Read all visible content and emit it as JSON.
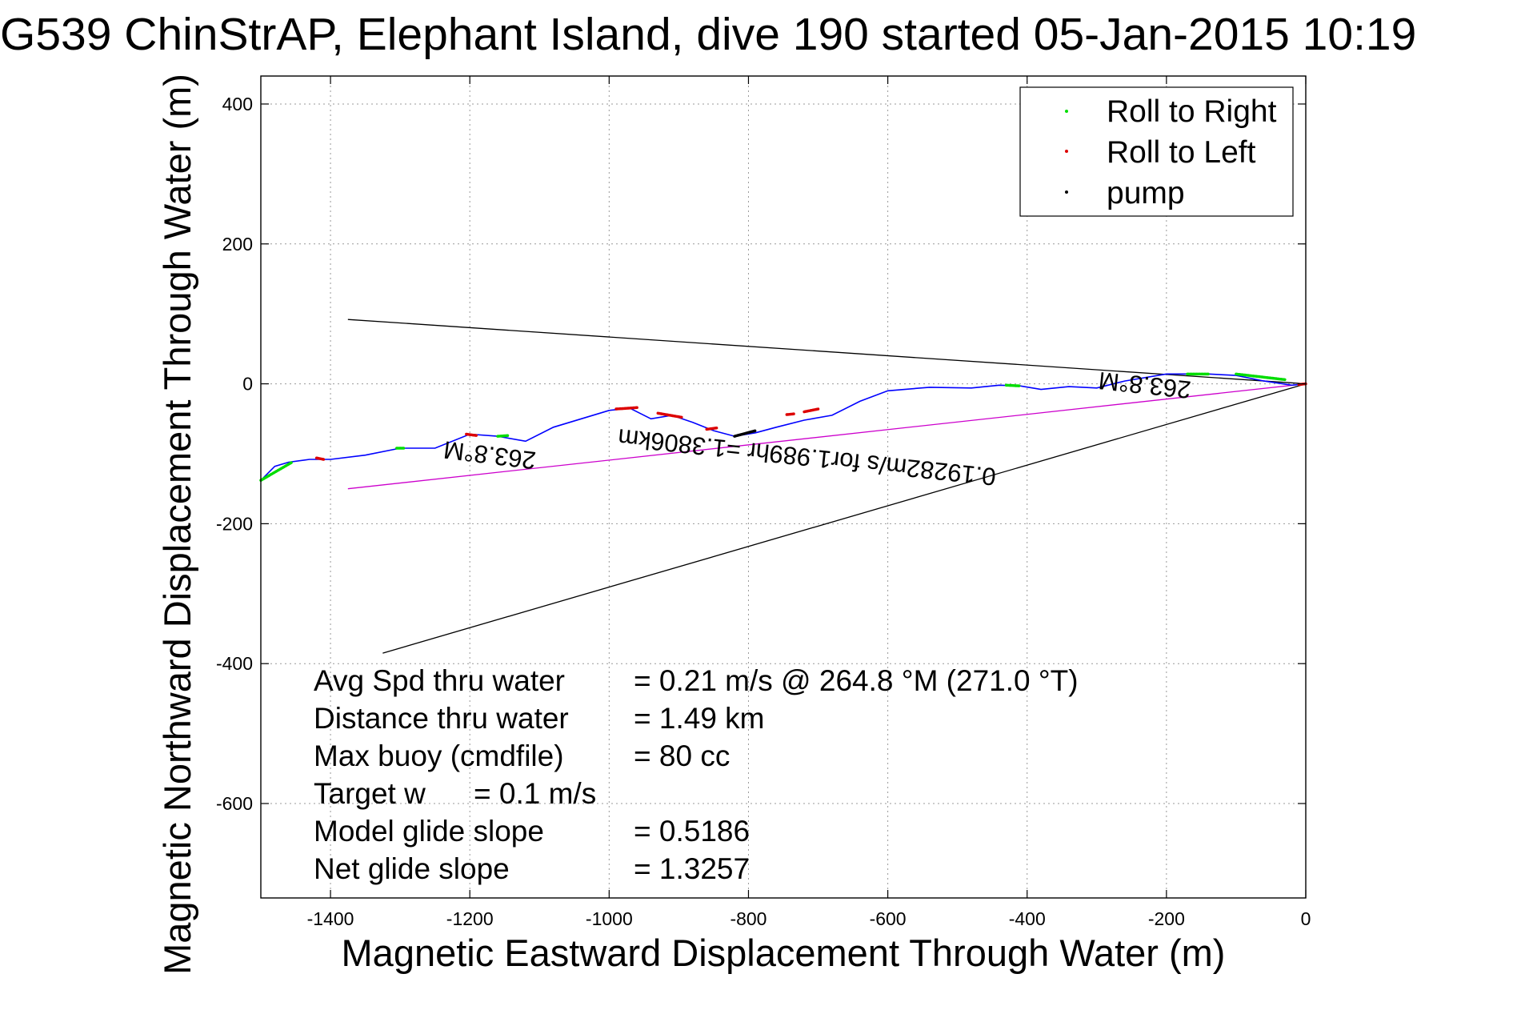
{
  "chart_data": {
    "type": "line",
    "title": "G539 ChinStrAP, Elephant Island, dive 190 started 05-Jan-2015 10:19",
    "xlabel": "Magnetic Eastward Displacement Through Water (m)",
    "ylabel": "Magnetic Northward Displacement Through Water (m)",
    "xlim": [
      -1500,
      0
    ],
    "ylim": [
      -735,
      440
    ],
    "xticks": [
      -1400,
      -1200,
      -1000,
      -800,
      -600,
      -400,
      -200,
      0
    ],
    "yticks": [
      400,
      200,
      0,
      -200,
      -400,
      -600
    ],
    "grid": true,
    "legend_position": "top-right",
    "legend": [
      {
        "label": "Roll to Right",
        "color": "#00dd00"
      },
      {
        "label": "Roll to Left",
        "color": "#dd0000"
      },
      {
        "label": "pump",
        "color": "#000000"
      }
    ],
    "track": {
      "color": "#0000ff",
      "x": [
        0,
        -20,
        -60,
        -100,
        -140,
        -200,
        -260,
        -300,
        -340,
        -380,
        -410,
        -440,
        -480,
        -540,
        -600,
        -640,
        -680,
        -720,
        -760,
        -790,
        -820,
        -850,
        -880,
        -910,
        -940,
        -970,
        -1000,
        -1040,
        -1080,
        -1120,
        -1160,
        -1200,
        -1250,
        -1300,
        -1350,
        -1400,
        -1430,
        -1460,
        -1480,
        -1500
      ],
      "y": [
        0,
        -2,
        4,
        12,
        14,
        14,
        4,
        -6,
        -4,
        -8,
        -3,
        -2,
        -6,
        -5,
        -10,
        -25,
        -45,
        -52,
        -62,
        -70,
        -75,
        -67,
        -55,
        -45,
        -50,
        -35,
        -38,
        -50,
        -62,
        -82,
        -75,
        -72,
        -92,
        -92,
        -102,
        -108,
        -108,
        -112,
        -118,
        -138
      ]
    },
    "roll_right_segments": [
      {
        "x": [
          -100,
          -30
        ],
        "y": [
          14,
          6
        ]
      },
      {
        "x": [
          -170,
          -140
        ],
        "y": [
          14,
          14
        ]
      },
      {
        "x": [
          -430,
          -410
        ],
        "y": [
          -2,
          -3
        ]
      },
      {
        "x": [
          -1160,
          -1145
        ],
        "y": [
          -75,
          -74
        ]
      },
      {
        "x": [
          -1305,
          -1295
        ],
        "y": [
          -92,
          -92
        ]
      },
      {
        "x": [
          -1500,
          -1455
        ],
        "y": [
          -138,
          -112
        ]
      }
    ],
    "roll_left_segments": [
      {
        "x": [
          -10,
          0
        ],
        "y": [
          -1,
          0
        ]
      },
      {
        "x": [
          -720,
          -700
        ],
        "y": [
          -40,
          -36
        ]
      },
      {
        "x": [
          -745,
          -735
        ],
        "y": [
          -44,
          -43
        ]
      },
      {
        "x": [
          -860,
          -845
        ],
        "y": [
          -65,
          -63
        ]
      },
      {
        "x": [
          -930,
          -895
        ],
        "y": [
          -42,
          -48
        ]
      },
      {
        "x": [
          -990,
          -960
        ],
        "y": [
          -36,
          -34
        ]
      },
      {
        "x": [
          -1205,
          -1190
        ],
        "y": [
          -72,
          -74
        ]
      },
      {
        "x": [
          -1420,
          -1410
        ],
        "y": [
          -106,
          -108
        ]
      }
    ],
    "pump_segments": [
      {
        "x": [
          -820,
          -790
        ],
        "y": [
          -75,
          -67
        ]
      }
    ],
    "reference_lines": [
      {
        "color": "#000000",
        "x": [
          0,
          -1375
        ],
        "y": [
          0,
          92
        ]
      },
      {
        "color": "#000000",
        "x": [
          0,
          -1325
        ],
        "y": [
          0,
          -385
        ]
      },
      {
        "color": "#cc00cc",
        "x": [
          0,
          -1375
        ],
        "y": [
          0,
          -150
        ]
      }
    ],
    "annotations": [
      {
        "text": "263.8°M",
        "x": -1170,
        "y": -90,
        "rotate": 187
      },
      {
        "text": "263.8°M",
        "x": -230,
        "y": 10,
        "rotate": 186
      },
      {
        "text": "0.19282m/s for1.989hr =1.3806km",
        "x": -715,
        "y": -93,
        "rotate": 186
      }
    ],
    "stats": [
      {
        "label": "Avg Spd thru water",
        "value": "=  0.21 m/s @ 264.8 °M (271.0 °T)"
      },
      {
        "label": "Distance thru water",
        "value": "=  1.49 km"
      },
      {
        "label": "Max buoy (cmdfile)",
        "value": "= 80 cc"
      },
      {
        "label": "Target w",
        "value": "= 0.1 m/s"
      },
      {
        "label": "Model glide slope",
        "value": "= 0.5186"
      },
      {
        "label": "Net glide slope",
        "value": "= 1.3257"
      }
    ]
  }
}
